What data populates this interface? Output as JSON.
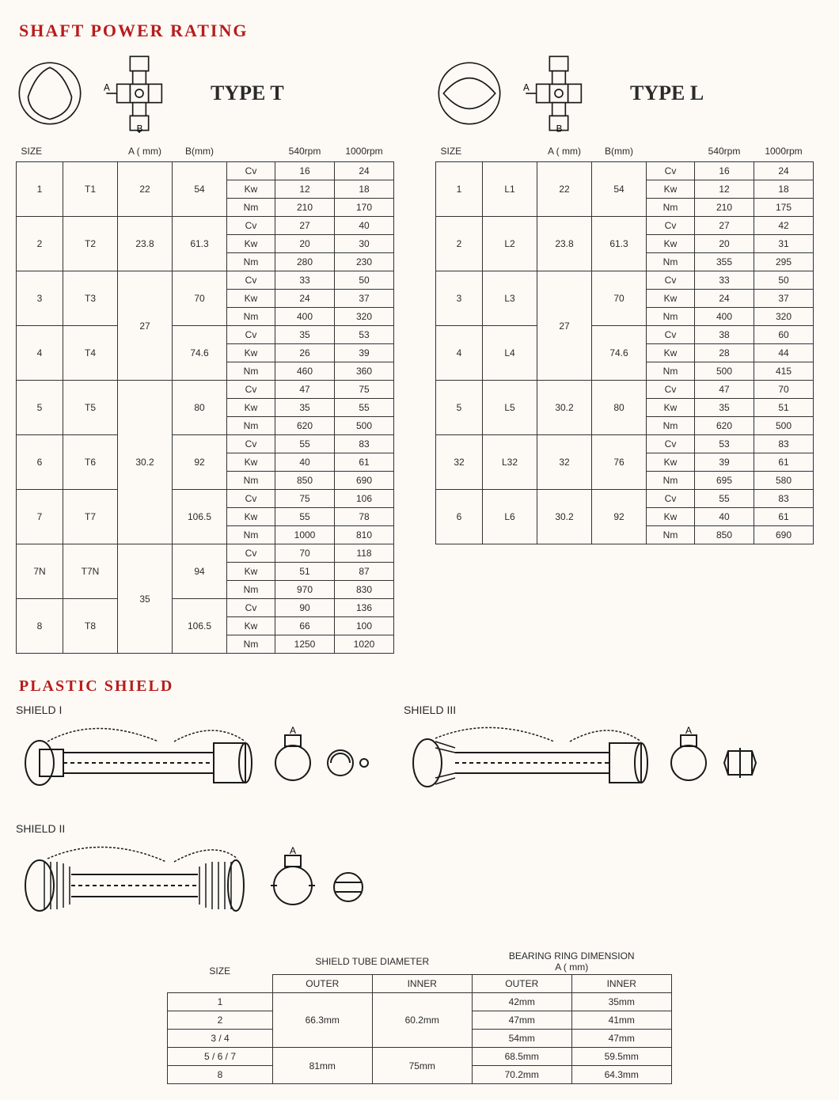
{
  "titles": {
    "shaft": "SHAFT POWER RATING",
    "plastic": "PLASTIC SHIELD",
    "typeT": "TYPE T",
    "typeL": "TYPE L",
    "shield1": "SHIELD I",
    "shield2": "SHIELD II",
    "shield3": "SHIELD III"
  },
  "colors": {
    "headerRed": "#b81c1c",
    "border": "#333333",
    "bg": "#fdfaf5",
    "ink": "#1a1a1a"
  },
  "diagram_labels": {
    "A": "A",
    "B": "B"
  },
  "headers": {
    "size": "SIZE",
    "Amm": "A ( mm)",
    "Bmm": "B(mm)",
    "r540": "540rpm",
    "r1000": "1000rpm"
  },
  "units": [
    "Cv",
    "Kw",
    "Nm"
  ],
  "tableT": [
    {
      "n": "1",
      "code": "T1",
      "A": "22",
      "B": "54",
      "cv": [
        "16",
        "24"
      ],
      "kw": [
        "12",
        "18"
      ],
      "nm": [
        "210",
        "170"
      ]
    },
    {
      "n": "2",
      "code": "T2",
      "A": "23.8",
      "B": "61.3",
      "cv": [
        "27",
        "40"
      ],
      "kw": [
        "20",
        "30"
      ],
      "nm": [
        "280",
        "230"
      ]
    },
    {
      "n": "3",
      "code": "T3",
      "A": "27",
      "B": "70",
      "cv": [
        "33",
        "50"
      ],
      "kw": [
        "24",
        "37"
      ],
      "nm": [
        "400",
        "320"
      ],
      "A_span": 2
    },
    {
      "n": "4",
      "code": "T4",
      "A": "",
      "B": "74.6",
      "cv": [
        "35",
        "53"
      ],
      "kw": [
        "26",
        "39"
      ],
      "nm": [
        "460",
        "360"
      ]
    },
    {
      "n": "5",
      "code": "T5",
      "A": "30.2",
      "B": "80",
      "cv": [
        "47",
        "75"
      ],
      "kw": [
        "35",
        "55"
      ],
      "nm": [
        "620",
        "500"
      ],
      "A_span": 3
    },
    {
      "n": "6",
      "code": "T6",
      "A": "",
      "B": "92",
      "cv": [
        "55",
        "83"
      ],
      "kw": [
        "40",
        "61"
      ],
      "nm": [
        "850",
        "690"
      ]
    },
    {
      "n": "7",
      "code": "T7",
      "A": "",
      "B": "106.5",
      "cv": [
        "75",
        "106"
      ],
      "kw": [
        "55",
        "78"
      ],
      "nm": [
        "1000",
        "810"
      ]
    },
    {
      "n": "7N",
      "code": "T7N",
      "A": "35",
      "B": "94",
      "cv": [
        "70",
        "118"
      ],
      "kw": [
        "51",
        "87"
      ],
      "nm": [
        "970",
        "830"
      ],
      "A_span": 2
    },
    {
      "n": "8",
      "code": "T8",
      "A": "",
      "B": "106.5",
      "cv": [
        "90",
        "136"
      ],
      "kw": [
        "66",
        "100"
      ],
      "nm": [
        "1250",
        "1020"
      ]
    }
  ],
  "tableL": [
    {
      "n": "1",
      "code": "L1",
      "A": "22",
      "B": "54",
      "cv": [
        "16",
        "24"
      ],
      "kw": [
        "12",
        "18"
      ],
      "nm": [
        "210",
        "175"
      ]
    },
    {
      "n": "2",
      "code": "L2",
      "A": "23.8",
      "B": "61.3",
      "cv": [
        "27",
        "42"
      ],
      "kw": [
        "20",
        "31"
      ],
      "nm": [
        "355",
        "295"
      ]
    },
    {
      "n": "3",
      "code": "L3",
      "A": "27",
      "B": "70",
      "cv": [
        "33",
        "50"
      ],
      "kw": [
        "24",
        "37"
      ],
      "nm": [
        "400",
        "320"
      ],
      "A_span": 2
    },
    {
      "n": "4",
      "code": "L4",
      "A": "",
      "B": "74.6",
      "cv": [
        "38",
        "60"
      ],
      "kw": [
        "28",
        "44"
      ],
      "nm": [
        "500",
        "415"
      ]
    },
    {
      "n": "5",
      "code": "L5",
      "A": "30.2",
      "B": "80",
      "cv": [
        "47",
        "70"
      ],
      "kw": [
        "35",
        "51"
      ],
      "nm": [
        "620",
        "500"
      ]
    },
    {
      "n": "32",
      "code": "L32",
      "A": "32",
      "B": "76",
      "cv": [
        "53",
        "83"
      ],
      "kw": [
        "39",
        "61"
      ],
      "nm": [
        "695",
        "580"
      ]
    },
    {
      "n": "6",
      "code": "L6",
      "A": "30.2",
      "B": "92",
      "cv": [
        "55",
        "83"
      ],
      "kw": [
        "40",
        "61"
      ],
      "nm": [
        "850",
        "690"
      ]
    }
  ],
  "shieldHeaders": {
    "size": "SIZE",
    "tube": "SHIELD TUBE DIAMETER",
    "ring": "BEARING RING DIMENSION",
    "ringSub": "A ( mm)",
    "outer": "OUTER",
    "inner": "INNER"
  },
  "shieldTable": [
    {
      "size": "1",
      "tubeO": "66.3mm",
      "tubeI": "60.2mm",
      "ringO": "42mm",
      "ringI": "35mm",
      "tube_span": 3
    },
    {
      "size": "2",
      "tubeO": "",
      "tubeI": "",
      "ringO": "47mm",
      "ringI": "41mm"
    },
    {
      "size": "3 / 4",
      "tubeO": "",
      "tubeI": "",
      "ringO": "54mm",
      "ringI": "47mm"
    },
    {
      "size": "5 / 6 / 7",
      "tubeO": "81mm",
      "tubeI": "75mm",
      "ringO": "68.5mm",
      "ringI": "59.5mm",
      "tube_span": 2
    },
    {
      "size": "8",
      "tubeO": "",
      "tubeI": "",
      "ringO": "70.2mm",
      "ringI": "64.3mm"
    }
  ]
}
